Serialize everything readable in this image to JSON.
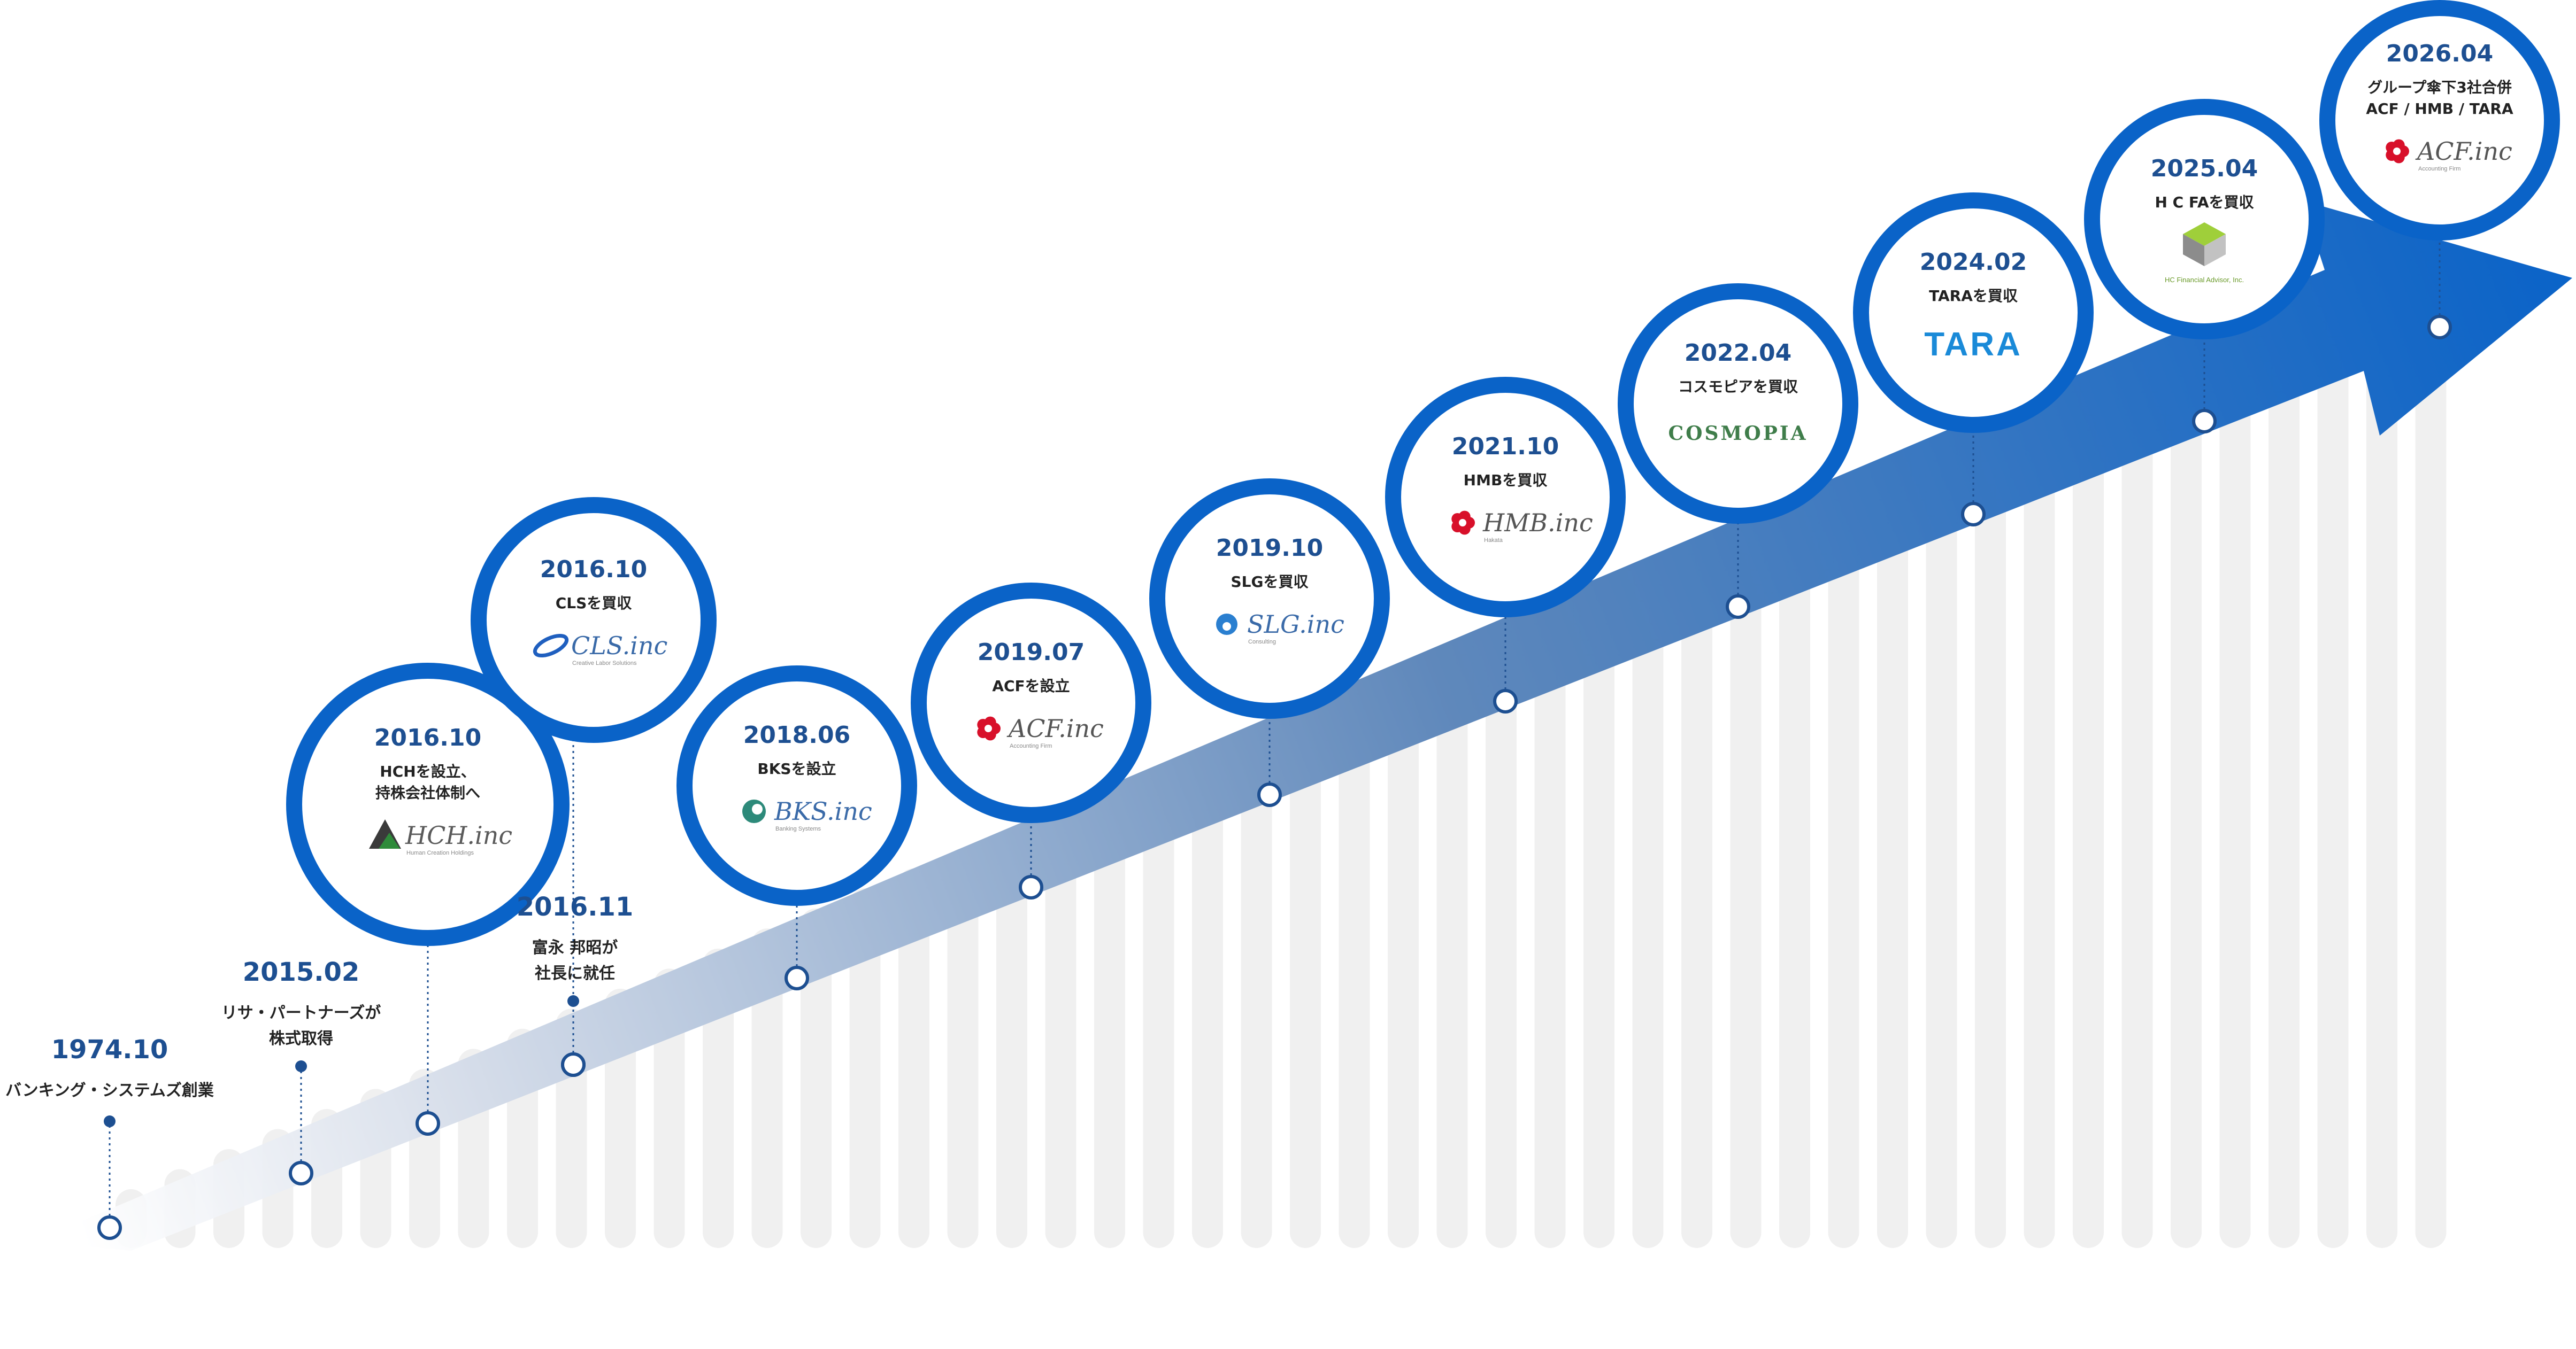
{
  "colors": {
    "ring": "#0a63c8",
    "date": "#1d4f91",
    "text": "#222222",
    "bars": "#f0f0f0",
    "arrow_start": "#dce3ee",
    "arrow_end": "#0a63c8",
    "dot": "#1d4f91"
  },
  "events": [
    {
      "date": "1974.10",
      "lines": [
        "バンキング・システムズ創業"
      ],
      "logo": null
    },
    {
      "date": "2015.02",
      "lines": [
        "リサ・パートナーズが",
        "株式取得"
      ],
      "logo": null
    },
    {
      "date": "2016.10",
      "lines": [
        "HCHを設立、",
        "持株会社体制へ"
      ],
      "logo": {
        "icon": "hch-leaf-icon",
        "text": "HCH.inc",
        "sub": "Human Creation Holdings"
      }
    },
    {
      "date": "2016.10",
      "lines": [
        "CLSを買収"
      ],
      "logo": {
        "icon": "cls-swirl-icon",
        "text": "CLS.inc",
        "sub": "Creative Labor Solutions"
      }
    },
    {
      "date": "2016.11",
      "lines": [
        "富永 邦昭が",
        "社長に就任"
      ],
      "logo": null
    },
    {
      "date": "2018.06",
      "lines": [
        "BKSを設立"
      ],
      "logo": {
        "icon": "bks-circle-icon",
        "text": "BKS.inc",
        "sub": "Banking Systems"
      }
    },
    {
      "date": "2019.07",
      "lines": [
        "ACFを設立"
      ],
      "logo": {
        "icon": "acf-flower-icon",
        "text": "ACF.inc",
        "sub": "Accounting Firm"
      }
    },
    {
      "date": "2019.10",
      "lines": [
        "SLGを買収"
      ],
      "logo": {
        "icon": "slg-drop-icon",
        "text": "SLG.inc",
        "sub": "Consulting"
      }
    },
    {
      "date": "2021.10",
      "lines": [
        "HMBを買収"
      ],
      "logo": {
        "icon": "hmb-flower-icon",
        "text": "HMB.inc",
        "sub": "Hakata"
      }
    },
    {
      "date": "2022.04",
      "lines": [
        "コスモピアを買収"
      ],
      "logo": {
        "icon": null,
        "text": "COSMOPIA",
        "sub": ""
      }
    },
    {
      "date": "2024.02",
      "lines": [
        "TARAを買収"
      ],
      "logo": {
        "icon": null,
        "text": "TARA",
        "sub": ""
      }
    },
    {
      "date": "2025.04",
      "lines": [
        "H C FAを買収"
      ],
      "logo": {
        "icon": "hcfa-cube-icon",
        "text": "",
        "sub": "HC Financial Advisor, Inc."
      }
    },
    {
      "date": "2026.04",
      "lines": [
        "グループ傘下3社合併",
        "ACF / HMB / TARA"
      ],
      "logo": {
        "icon": "acf-flower-icon",
        "text": "ACF.inc",
        "sub": "Accounting Firm"
      }
    }
  ]
}
